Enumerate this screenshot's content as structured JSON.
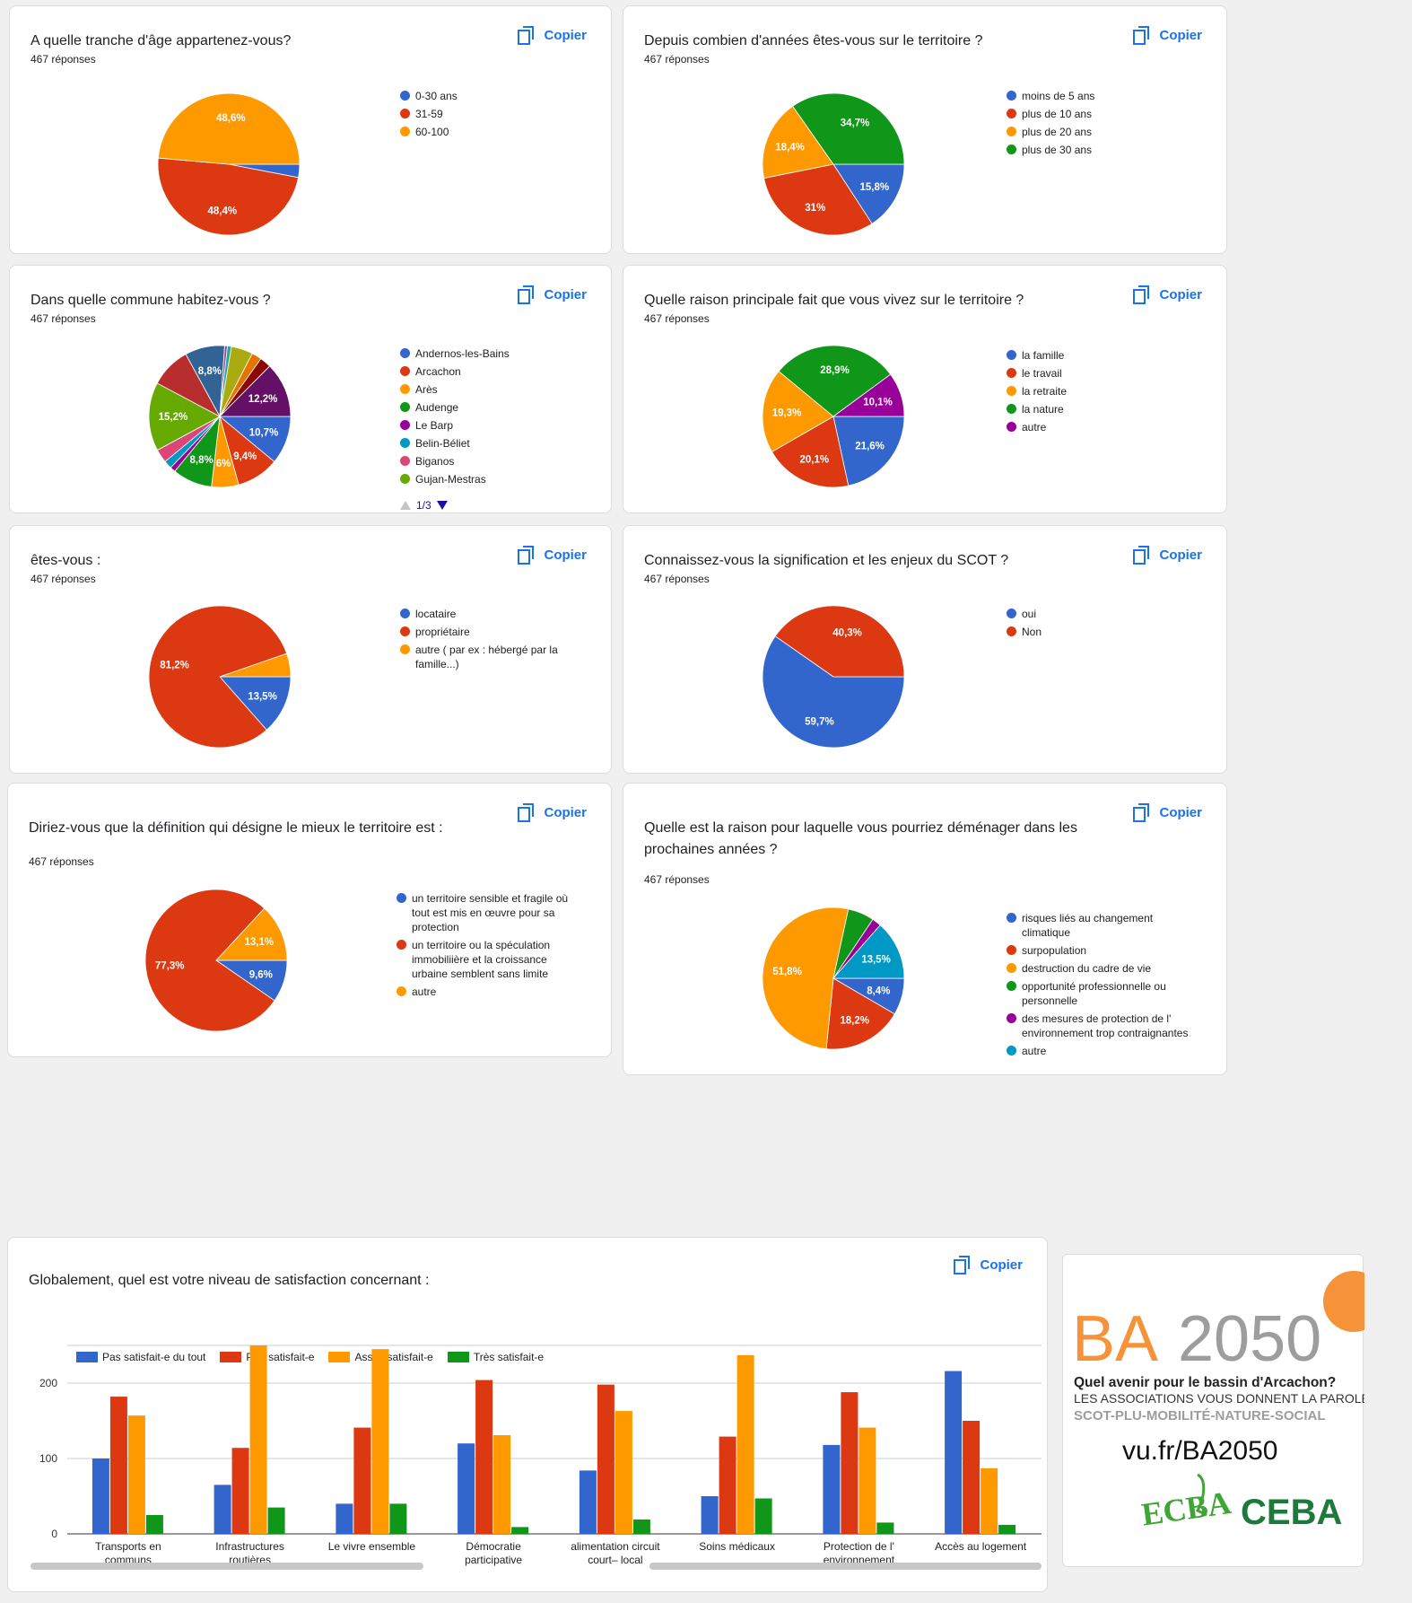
{
  "copy_label": "Copier",
  "colors": {
    "blue": "#3366cc",
    "red": "#dc3912",
    "orange": "#ff9900",
    "green": "#109618",
    "purple": "#990099",
    "teal": "#0099c6",
    "pink": "#dd4477",
    "lime": "#66aa00",
    "darkred": "#b82e2e",
    "navy": "#316395",
    "accent": "#1a73e8"
  },
  "questions": [
    {
      "title": "A quelle tranche d'âge appartenez-vous?",
      "count": "467 réponses",
      "chart_data": {
        "type": "pie",
        "legend": [
          "0-30 ans",
          "31-59",
          "60-100"
        ],
        "colors": [
          "#3366cc",
          "#dc3912",
          "#ff9900"
        ],
        "values": [
          3.0,
          48.4,
          48.6
        ],
        "labels": [
          "",
          "48,4%",
          "48,6%"
        ]
      }
    },
    {
      "title": "Depuis combien d'années êtes-vous sur le territoire ?",
      "count": "467 réponses",
      "chart_data": {
        "type": "pie",
        "legend": [
          "moins de 5 ans",
          "plus de 10 ans",
          "plus de 20 ans",
          "plus de 30 ans"
        ],
        "colors": [
          "#3366cc",
          "#dc3912",
          "#ff9900",
          "#109618"
        ],
        "values": [
          15.8,
          31,
          18.4,
          34.7
        ],
        "labels": [
          "15,8%",
          "31%",
          "18,4%",
          "34,7%"
        ]
      }
    },
    {
      "title": "Dans quelle commune habitez-vous ?",
      "count": "467 réponses",
      "chart_data": {
        "type": "pie",
        "legend": [
          "Andernos-les-Bains",
          "Arcachon",
          "Arès",
          "Audenge",
          "Le Barp",
          "Belin-Béliet",
          "Biganos",
          "Gujan-Mestras"
        ],
        "pager": "1/3",
        "colors": [
          "#3366cc",
          "#dc3912",
          "#ff9900",
          "#109618",
          "#990099",
          "#0099c6",
          "#dd4477",
          "#66aa00",
          "#b82e2e",
          "#316395",
          "#994499",
          "#22aa99",
          "#aaaa11",
          "#e67300",
          "#8b0707",
          "#651067"
        ],
        "values": [
          10.7,
          9.4,
          6,
          8.8,
          1.2,
          1.8,
          3.0,
          15.2,
          9.0,
          8.8,
          0.6,
          0.9,
          4.8,
          2.2,
          2.5,
          12.2
        ],
        "labels": [
          "10,7%",
          "9,4%",
          "6%",
          "8,8%",
          "",
          "",
          "",
          "15,2%",
          "",
          "8,8%",
          "",
          "",
          "",
          "",
          "",
          "12,2%"
        ]
      }
    },
    {
      "title": "Quelle raison principale fait que vous vivez sur le territoire ?",
      "count": "467 réponses",
      "chart_data": {
        "type": "pie",
        "legend": [
          "la famille",
          "le travail",
          "la retraite",
          "la nature",
          "autre"
        ],
        "colors": [
          "#3366cc",
          "#dc3912",
          "#ff9900",
          "#109618",
          "#990099"
        ],
        "values": [
          21.6,
          20.1,
          19.3,
          28.9,
          10.1
        ],
        "labels": [
          "21,6%",
          "20,1%",
          "19,3%",
          "28,9%",
          "10,1%"
        ]
      }
    },
    {
      "title": "êtes-vous :",
      "count": "467 réponses",
      "chart_data": {
        "type": "pie",
        "legend": [
          "locataire",
          "propriétaire",
          "autre ( par ex : hébergé par la famille...)"
        ],
        "colors": [
          "#3366cc",
          "#dc3912",
          "#ff9900"
        ],
        "values": [
          13.5,
          81.2,
          5.3
        ],
        "labels": [
          "13,5%",
          "81,2%",
          ""
        ]
      }
    },
    {
      "title": "Connaissez-vous la signification et les enjeux du SCOT ?",
      "count": "467 réponses",
      "chart_data": {
        "type": "pie",
        "legend": [
          "oui",
          "Non"
        ],
        "colors": [
          "#3366cc",
          "#dc3912"
        ],
        "values": [
          59.7,
          40.3
        ],
        "labels": [
          "59,7%",
          "40,3%"
        ]
      }
    },
    {
      "title": "Diriez-vous que la définition qui désigne le mieux le territoire est :",
      "count": "467 réponses",
      "chart_data": {
        "type": "pie",
        "legend": [
          "un territoire sensible et fragile où tout est mis en œuvre pour sa protection",
          "un territoire ou la spéculation immobiliière et la croissance urbaine semblent sans limite",
          "autre"
        ],
        "colors": [
          "#3366cc",
          "#dc3912",
          "#ff9900"
        ],
        "values": [
          9.6,
          77.3,
          13.1
        ],
        "labels": [
          "9,6%",
          "77,3%",
          "13,1%"
        ]
      }
    },
    {
      "title": "Quelle est la raison pour laquelle vous pourriez déménager dans les prochaines années ?",
      "count": "467 réponses",
      "chart_data": {
        "type": "pie",
        "legend": [
          "risques liés au changement climatique",
          "surpopulation",
          "destruction du cadre de vie",
          "opportunité professionnelle ou personnelle",
          "des mesures de protection de l' environnement trop contraignantes",
          "autre"
        ],
        "colors": [
          "#3366cc",
          "#dc3912",
          "#ff9900",
          "#109618",
          "#990099",
          "#0099c6"
        ],
        "values": [
          8.4,
          18.2,
          51.8,
          6.0,
          2.1,
          13.5
        ],
        "labels": [
          "8,4%",
          "18,2%",
          "51,8%",
          "",
          "",
          "13,5%"
        ]
      }
    }
  ],
  "satisfaction": {
    "title": "Globalement, quel est votre niveau de satisfaction concernant :",
    "chart_data": {
      "type": "bar",
      "categories": [
        [
          "Transports en",
          "communs"
        ],
        [
          "Infrastructures",
          "routières"
        ],
        [
          "Le vivre ensemble"
        ],
        [
          "Démocratie",
          "participative"
        ],
        [
          "alimentation circuit",
          "court– local"
        ],
        [
          "Soins médicaux"
        ],
        [
          "Protection de l'",
          "environnement"
        ],
        [
          "Accès au logement"
        ]
      ],
      "series": [
        {
          "name": "Pas satisfait-e du tout",
          "color": "#3366cc",
          "values": [
            100,
            65,
            40,
            120,
            84,
            50,
            118,
            216
          ]
        },
        {
          "name": "Peu satisfait-e",
          "color": "#dc3912",
          "values": [
            182,
            114,
            141,
            204,
            198,
            129,
            188,
            150
          ]
        },
        {
          "name": "Assez satisfait-e",
          "color": "#ff9900",
          "values": [
            157,
            250,
            245,
            131,
            163,
            237,
            141,
            87
          ]
        },
        {
          "name": "Très satisfait-e",
          "color": "#109618",
          "values": [
            25,
            35,
            40,
            9,
            19,
            47,
            15,
            12
          ]
        }
      ],
      "yticks": [
        "0",
        "100",
        "200"
      ],
      "ylim": [
        0,
        250
      ]
    }
  },
  "logo": {
    "ba": "BA",
    "year": "2050",
    "tagline": "Quel avenir pour le bassin d'Arcachon?",
    "line2": "LES ASSOCIATIONS VOUS DONNENT LA PAROLE",
    "line3": "SCOT-PLU-MOBILITÉ-NATURE-SOCIAL",
    "url": "vu.fr/BA2050",
    "ecba": "ECBA",
    "ceba": "CEBA"
  }
}
